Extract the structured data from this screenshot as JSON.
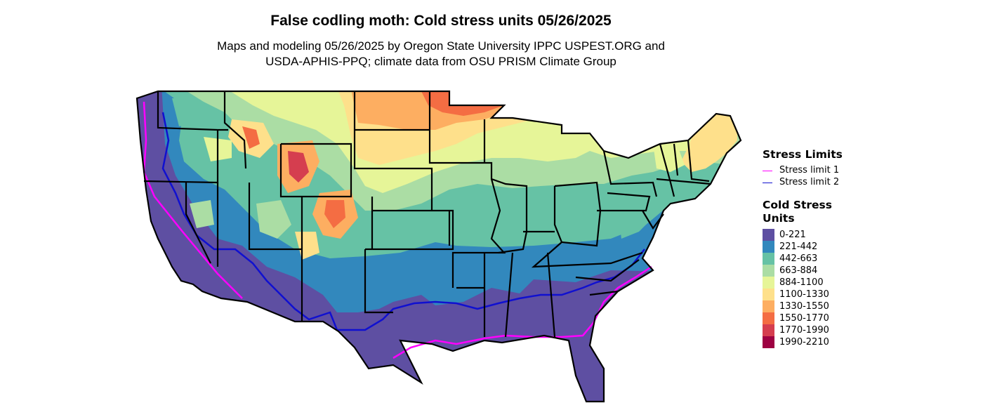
{
  "title": "False codling moth: Cold stress units 05/26/2025",
  "subtitle_line1": "Maps and modeling 05/26/2025 by Oregon State University IPPC USPEST.ORG and",
  "subtitle_line2": "USDA-APHIS-PPQ; climate data from OSU PRISM Climate Group",
  "legend_limits": {
    "title": "Stress Limits",
    "items": [
      {
        "label": "Stress limit 1",
        "color": "#ff00ff"
      },
      {
        "label": "Stress limit 2",
        "color": "#1010d0"
      }
    ]
  },
  "legend_units": {
    "title": "Cold Stress Units",
    "items": [
      {
        "label": "0-221",
        "color": "#5e4fa2"
      },
      {
        "label": "221-442",
        "color": "#3288bd"
      },
      {
        "label": "442-663",
        "color": "#66c2a5"
      },
      {
        "label": "663-884",
        "color": "#abdda4"
      },
      {
        "label": "884-1100",
        "color": "#e6f598"
      },
      {
        "label": "1100-1330",
        "color": "#fee08b"
      },
      {
        "label": "1330-1550",
        "color": "#fdae61"
      },
      {
        "label": "1550-1770",
        "color": "#f46d43"
      },
      {
        "label": "1770-1990",
        "color": "#d53e4f"
      },
      {
        "label": "1990-2210",
        "color": "#9e0142"
      }
    ]
  }
}
